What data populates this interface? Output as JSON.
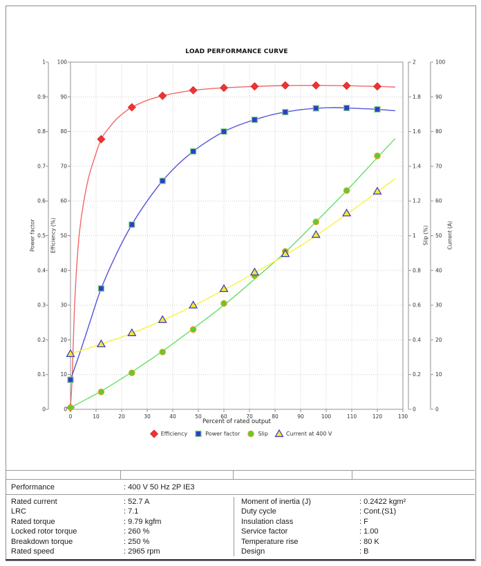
{
  "chart_data": {
    "type": "line",
    "title": "LOAD PERFORMANCE CURVE",
    "xlabel": "Percent of rated output",
    "grid": "dotted",
    "legend_position": "bottom",
    "x_axis": {
      "range": [
        0,
        130
      ],
      "tick_step": 10,
      "tick_labels": [
        "0",
        "10",
        "20",
        "30",
        "40",
        "50",
        "60",
        "70",
        "80",
        "90",
        "100",
        "110",
        "120",
        "130"
      ]
    },
    "axes": [
      {
        "id": "power_factor",
        "label": "Power factor",
        "side": "left",
        "range": [
          0,
          1
        ],
        "tick_labels": [
          "0",
          "0.1",
          "0.2",
          "0.3",
          "0.4",
          "0.5",
          "0.6",
          "0.7",
          "0.8",
          "0.9",
          "1"
        ]
      },
      {
        "id": "efficiency",
        "label": "Efficiency (%)",
        "side": "left",
        "range": [
          0,
          100
        ],
        "tick_labels": [
          "0",
          "10",
          "20",
          "30",
          "40",
          "50",
          "60",
          "70",
          "80",
          "90",
          "100"
        ]
      },
      {
        "id": "slip",
        "label": "Slip (%)",
        "side": "right",
        "range": [
          0,
          2
        ],
        "tick_labels": [
          "0",
          "0.2",
          "0.4",
          "0.6",
          "0.8",
          "1",
          "1.2",
          "1.4",
          "1.6",
          "1.8",
          "2"
        ]
      },
      {
        "id": "current",
        "label": "Current (A)",
        "side": "right",
        "range": [
          0,
          100
        ],
        "tick_labels": [
          "0",
          "10",
          "20",
          "30",
          "40",
          "50",
          "60",
          "70",
          "80",
          "90",
          "100"
        ]
      }
    ],
    "x_points": [
      0,
      12,
      24,
      36,
      48,
      60,
      72,
      84,
      96,
      108,
      120
    ],
    "series": [
      {
        "name": "Efficiency",
        "axis": "efficiency",
        "marker": "diamond",
        "line_color": "#f26666",
        "marker_fill": "#ee3333",
        "marker_stroke": "#d42a2a",
        "values": [
          0.5,
          77.8,
          87.0,
          90.3,
          91.9,
          92.6,
          93.0,
          93.3,
          93.3,
          93.2,
          93.0
        ],
        "line": [
          [
            0,
            0.5
          ],
          [
            0.7,
            10
          ],
          [
            1.5,
            28
          ],
          [
            2.5,
            42
          ],
          [
            3.5,
            51
          ],
          [
            5,
            59
          ],
          [
            7,
            66.5
          ],
          [
            9,
            71.5
          ],
          [
            12,
            77.8
          ],
          [
            15,
            81
          ],
          [
            18,
            83.6
          ],
          [
            21,
            85.5
          ],
          [
            24,
            87
          ],
          [
            30,
            89
          ],
          [
            36,
            90.3
          ],
          [
            42,
            91.2
          ],
          [
            48,
            91.9
          ],
          [
            54,
            92.3
          ],
          [
            60,
            92.6
          ],
          [
            72,
            93
          ],
          [
            84,
            93.25
          ],
          [
            96,
            93.3
          ],
          [
            108,
            93.2
          ],
          [
            120,
            93
          ],
          [
            127,
            92.8
          ]
        ]
      },
      {
        "name": "Power factor",
        "axis": "power_factor",
        "marker": "square",
        "line_color": "#5252dd",
        "marker_fill": "#2e3ecb",
        "marker_stroke": "#7fd37f",
        "values": [
          0.085,
          0.348,
          0.532,
          0.658,
          0.743,
          0.8,
          0.834,
          0.856,
          0.867,
          0.868,
          0.864
        ],
        "line": [
          [
            0,
            0.085
          ],
          [
            4,
            0.17
          ],
          [
            8,
            0.26
          ],
          [
            12,
            0.348
          ],
          [
            18,
            0.448
          ],
          [
            24,
            0.532
          ],
          [
            30,
            0.6
          ],
          [
            36,
            0.658
          ],
          [
            42,
            0.705
          ],
          [
            48,
            0.743
          ],
          [
            54,
            0.774
          ],
          [
            60,
            0.8
          ],
          [
            66,
            0.819
          ],
          [
            72,
            0.834
          ],
          [
            78,
            0.847
          ],
          [
            84,
            0.856
          ],
          [
            90,
            0.863
          ],
          [
            96,
            0.867
          ],
          [
            102,
            0.869
          ],
          [
            108,
            0.868
          ],
          [
            114,
            0.866
          ],
          [
            120,
            0.864
          ],
          [
            127,
            0.86
          ]
        ]
      },
      {
        "name": "Slip",
        "axis": "slip",
        "marker": "circle",
        "line_color": "#63e063",
        "marker_fill": "#5ecc2e",
        "marker_stroke": "#f0a030",
        "values": [
          0.01,
          0.1,
          0.21,
          0.33,
          0.46,
          0.61,
          0.77,
          0.91,
          1.08,
          1.26,
          1.46
        ],
        "line": [
          [
            0,
            0.01
          ],
          [
            12,
            0.105
          ],
          [
            24,
            0.215
          ],
          [
            36,
            0.335
          ],
          [
            48,
            0.465
          ],
          [
            60,
            0.6
          ],
          [
            72,
            0.75
          ],
          [
            84,
            0.905
          ],
          [
            96,
            1.08
          ],
          [
            108,
            1.26
          ],
          [
            120,
            1.45
          ],
          [
            127,
            1.56
          ]
        ]
      },
      {
        "name": "Current at 400 V",
        "axis": "current",
        "marker": "triangle",
        "line_color": "#f8f23e",
        "marker_fill": "#f7e733",
        "marker_stroke": "#3434c4",
        "values": [
          16.0,
          18.8,
          22.0,
          25.8,
          30.0,
          34.7,
          39.5,
          44.8,
          50.3,
          56.5,
          62.8
        ],
        "line": [
          [
            0,
            16
          ],
          [
            12,
            18.8
          ],
          [
            24,
            21.9
          ],
          [
            36,
            25.6
          ],
          [
            48,
            29.8
          ],
          [
            60,
            34.4
          ],
          [
            72,
            39.3
          ],
          [
            84,
            44.4
          ],
          [
            96,
            50
          ],
          [
            108,
            56.2
          ],
          [
            120,
            62.6
          ],
          [
            127,
            66.5
          ]
        ]
      }
    ]
  },
  "table": {
    "performance_row": {
      "label": "Performance",
      "value": ": 400 V 50 Hz 2P IE3"
    },
    "rows": [
      {
        "l1": "Rated current",
        "v1": ": 52.7 A",
        "l2": "Moment of inertia (J)",
        "v2": ": 0.2422 kgm²"
      },
      {
        "l1": "LRC",
        "v1": ": 7.1",
        "l2": "Duty cycle",
        "v2": ": Cont.(S1)"
      },
      {
        "l1": "Rated torque",
        "v1": ": 9.79 kgfm",
        "l2": "Insulation class",
        "v2": ": F"
      },
      {
        "l1": "Locked rotor torque",
        "v1": ": 260 %",
        "l2": "Service factor",
        "v2": ": 1.00"
      },
      {
        "l1": "Breakdown torque",
        "v1": ": 250 %",
        "l2": "Temperature rise",
        "v2": ": 80 K"
      },
      {
        "l1": "Rated speed",
        "v1": ": 2965 rpm",
        "l2": "Design",
        "v2": ": B"
      }
    ]
  }
}
